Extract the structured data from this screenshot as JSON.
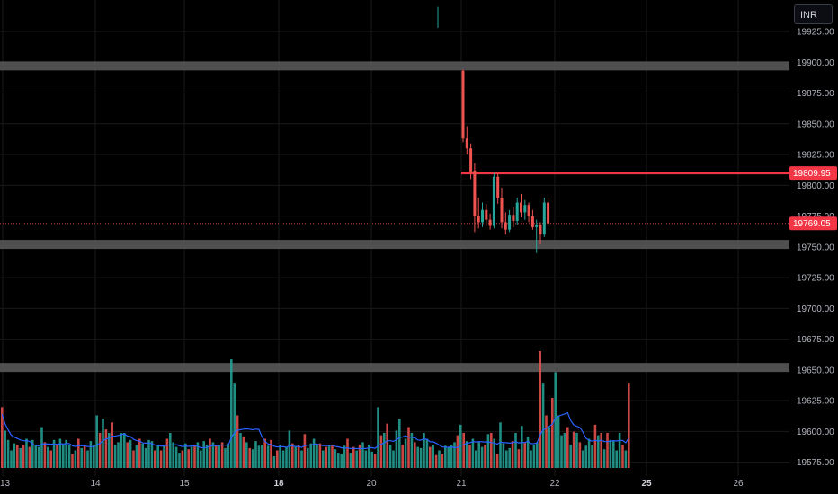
{
  "currency": {
    "label": "INR"
  },
  "colors": {
    "up": "#26a69a",
    "down": "#ef5350",
    "bg": "#000000",
    "ma": "#2962ff",
    "zone": "#5d5d5d",
    "resistance": "#f23645",
    "grid": "#1a1a1a"
  },
  "price_axis": {
    "ticks": [
      "19925.00",
      "19900.00",
      "19875.00",
      "19850.00",
      "19825.00",
      "19800.00",
      "19775.00",
      "19750.00",
      "19725.00",
      "19700.00",
      "19675.00",
      "19650.00",
      "19625.00",
      "19600.00",
      "19575.00"
    ],
    "levels": {
      "resistance": "19809.95",
      "last_price": "19769.05"
    }
  },
  "time_axis": {
    "labels": [
      {
        "text": "13",
        "bold": false
      },
      {
        "text": "14",
        "bold": false
      },
      {
        "text": "15",
        "bold": false
      },
      {
        "text": "18",
        "bold": true
      },
      {
        "text": "20",
        "bold": false
      },
      {
        "text": "21",
        "bold": false
      },
      {
        "text": "22",
        "bold": false
      },
      {
        "text": "25",
        "bold": true
      },
      {
        "text": "26",
        "bold": false
      }
    ]
  },
  "chart_data": {
    "type": "candlestick_with_volume",
    "instrument_currency": "INR",
    "price_range": [
      19562,
      19935
    ],
    "horizontal_zones": [
      19897,
      19752,
      19652
    ],
    "resistance_line": 19809.95,
    "last_price": 19769.05,
    "candles": [
      {
        "o": 19893,
        "h": 19894,
        "l": 19835,
        "c": 19838
      },
      {
        "o": 19838,
        "h": 19848,
        "l": 19825,
        "c": 19830
      },
      {
        "o": 19830,
        "h": 19834,
        "l": 19805,
        "c": 19810
      },
      {
        "o": 19812,
        "h": 19818,
        "l": 19762,
        "c": 19775
      },
      {
        "o": 19775,
        "h": 19790,
        "l": 19765,
        "c": 19770
      },
      {
        "o": 19770,
        "h": 19786,
        "l": 19766,
        "c": 19780
      },
      {
        "o": 19780,
        "h": 19785,
        "l": 19767,
        "c": 19772
      },
      {
        "o": 19772,
        "h": 19777,
        "l": 19764,
        "c": 19767
      },
      {
        "o": 19767,
        "h": 19810,
        "l": 19765,
        "c": 19807
      },
      {
        "o": 19807,
        "h": 19810,
        "l": 19785,
        "c": 19790
      },
      {
        "o": 19790,
        "h": 19798,
        "l": 19765,
        "c": 19770
      },
      {
        "o": 19770,
        "h": 19778,
        "l": 19760,
        "c": 19764
      },
      {
        "o": 19764,
        "h": 19780,
        "l": 19762,
        "c": 19776
      },
      {
        "o": 19776,
        "h": 19782,
        "l": 19766,
        "c": 19771
      },
      {
        "o": 19771,
        "h": 19790,
        "l": 19768,
        "c": 19786
      },
      {
        "o": 19786,
        "h": 19793,
        "l": 19774,
        "c": 19778
      },
      {
        "o": 19778,
        "h": 19788,
        "l": 19772,
        "c": 19784
      },
      {
        "o": 19784,
        "h": 19786,
        "l": 19770,
        "c": 19775
      },
      {
        "o": 19775,
        "h": 19780,
        "l": 19764,
        "c": 19766
      },
      {
        "o": 19766,
        "h": 19772,
        "l": 19745,
        "c": 19768
      },
      {
        "o": 19768,
        "h": 19770,
        "l": 19752,
        "c": 19760
      },
      {
        "o": 19760,
        "h": 19790,
        "l": 19758,
        "c": 19786
      },
      {
        "o": 19786,
        "h": 19790,
        "l": 19768,
        "c": 19769
      }
    ],
    "spike_candle": {
      "o": 19932,
      "h": 19945,
      "l": 19928,
      "c": 19940
    },
    "volume": {
      "values": [
        0.52,
        0.32,
        0.24,
        0.15,
        0.21,
        0.2,
        0.17,
        0.2,
        0.25,
        0.18,
        0.24,
        0.2,
        0.18,
        0.35,
        0.22,
        0.18,
        0.15,
        0.24,
        0.2,
        0.25,
        0.2,
        0.24,
        0.2,
        0.12,
        0.15,
        0.25,
        0.17,
        0.2,
        0.15,
        0.23,
        0.2,
        0.45,
        0.3,
        0.42,
        0.33,
        0.3,
        0.39,
        0.2,
        0.22,
        0.3,
        0.3,
        0.22,
        0.24,
        0.15,
        0.2,
        0.25,
        0.21,
        0.17,
        0.24,
        0.23,
        0.15,
        0.2,
        0.15,
        0.19,
        0.25,
        0.3,
        0.22,
        0.18,
        0.13,
        0.15,
        0.21,
        0.16,
        0.18,
        0.2,
        0.22,
        0.15,
        0.23,
        0.2,
        0.25,
        0.22,
        0.19,
        0.2,
        0.22,
        0.17,
        0.21,
        0.93,
        0.73,
        0.45,
        0.3,
        0.27,
        0.22,
        0.17,
        0.16,
        0.23,
        0.19,
        0.2,
        0.25,
        0.19,
        0.24,
        0.1,
        0.15,
        0.2,
        0.15,
        0.18,
        0.32,
        0.21,
        0.18,
        0.2,
        0.15,
        0.29,
        0.17,
        0.21,
        0.25,
        0.2,
        0.21,
        0.15,
        0.18,
        0.2,
        0.2,
        0.16,
        0.13,
        0.12,
        0.19,
        0.25,
        0.13,
        0.18,
        0.15,
        0.2,
        0.22,
        0.15,
        0.2,
        0.14,
        0.12,
        0.52,
        0.28,
        0.3,
        0.38,
        0.2,
        0.15,
        0.32,
        0.42,
        0.2,
        0.25,
        0.35,
        0.3,
        0.22,
        0.18,
        0.17,
        0.3,
        0.25,
        0.18,
        0.2,
        0.11,
        0.15,
        0.12,
        0.19,
        0.18,
        0.2,
        0.22,
        0.28,
        0.37,
        0.3,
        0.23,
        0.2,
        0.25,
        0.15,
        0.22,
        0.18,
        0.2,
        0.29,
        0.3,
        0.25,
        0.12,
        0.39,
        0.21,
        0.15,
        0.17,
        0.23,
        0.3,
        0.16,
        0.36,
        0.22,
        0.27,
        0.15,
        0.2,
        0.22,
        1.0,
        0.73,
        0.45,
        0.35,
        0.6,
        0.82,
        0.45,
        0.28,
        0.3,
        0.35,
        0.2,
        0.31,
        0.3,
        0.22,
        0.15,
        0.19,
        0.25,
        0.2,
        0.37,
        0.28,
        0.3,
        0.16,
        0.3,
        0.24,
        0.23,
        0.15,
        0.3,
        0.2,
        0.15,
        0.73
      ],
      "ma_level": 0.28
    }
  }
}
